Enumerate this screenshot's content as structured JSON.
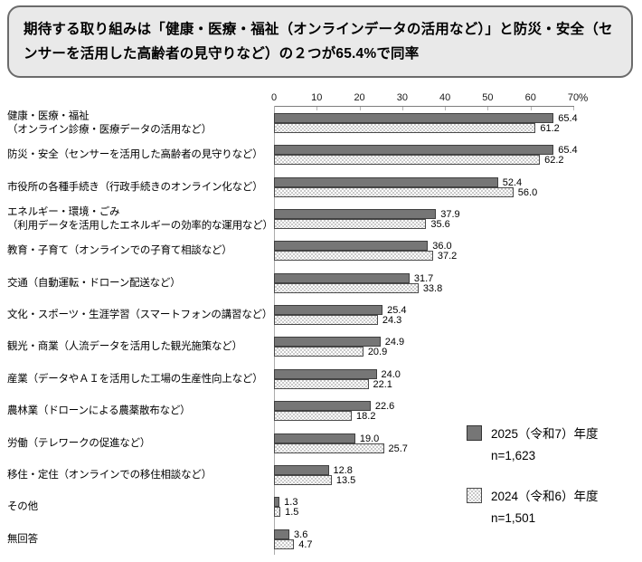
{
  "chart_data": {
    "type": "bar",
    "orientation": "horizontal",
    "title": "期待する取り組みは「健康・医療・福祉（オンラインデータの活用など）」と防災・安全（センサーを活用した高齢者の見守りなど）の２つが65.4%で同率",
    "unit": "%",
    "xlim": [
      0,
      70
    ],
    "axis_ticks": [
      0,
      10,
      20,
      30,
      40,
      50,
      60,
      70
    ],
    "grid": false,
    "legend_position": "right-bottom",
    "categories": [
      "健康・医療・福祉\n（オンライン診療・医療データの活用など）",
      "防災・安全（センサーを活用した高齢者の見守りなど）",
      "市役所の各種手続き（行政手続きのオンライン化など）",
      "エネルギー・環境・ごみ\n（利用データを活用したエネルギーの効率的な運用など）",
      "教育・子育て（オンラインでの子育て相談など）",
      "交通（自動運転・ドローン配送など）",
      "文化・スポーツ・生涯学習（スマートフォンの講習など）",
      "観光・商業（人流データを活用した観光施策など）",
      "産業（データやＡＩを活用した工場の生産性向上など）",
      "農林業（ドローンによる農薬散布など）",
      "労働（テレワークの促進など）",
      "移住・定住（オンラインでの移住相談など）",
      "その他",
      "無回答"
    ],
    "series": [
      {
        "name": "2025（令和7）年度",
        "n": "n=1,623",
        "color": "#767676",
        "values": [
          65.4,
          65.4,
          52.4,
          37.9,
          36.0,
          31.7,
          25.4,
          24.9,
          24.0,
          22.6,
          19.0,
          12.8,
          1.3,
          3.6
        ]
      },
      {
        "name": "2024（令和6）年度",
        "n": "n=1,501",
        "color": "#c9c9c9",
        "pattern": "checkerboard",
        "values": [
          61.2,
          62.2,
          56.0,
          35.6,
          37.2,
          33.8,
          24.3,
          20.9,
          22.1,
          18.2,
          25.7,
          13.5,
          1.5,
          4.7
        ]
      }
    ]
  }
}
